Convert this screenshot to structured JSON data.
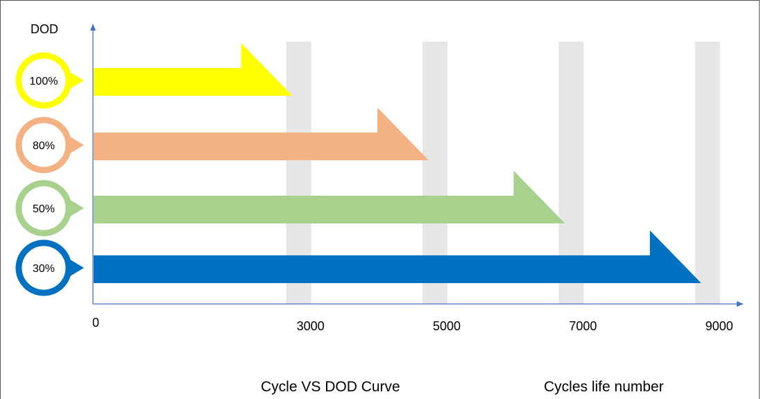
{
  "chart_data": {
    "type": "bar",
    "orientation": "horizontal",
    "ylabel": "DOD",
    "xlabel": "Cycles life number",
    "caption": "Cycle VS DOD Curve",
    "x_origin_label": "0",
    "xlim": [
      0,
      10000
    ],
    "x_ticks": [
      {
        "value": 3000,
        "label": "3000"
      },
      {
        "value": 5000,
        "label": "5000"
      },
      {
        "value": 7000,
        "label": "7000"
      },
      {
        "value": 9000,
        "label": "9000"
      }
    ],
    "grid": "vertical bands at tick values",
    "categories": [
      "100%",
      "80%",
      "50%",
      "30%"
    ],
    "values": [
      3000,
      5000,
      7000,
      9000
    ],
    "colors": [
      "#ffff00",
      "#f4b183",
      "#a9d18e",
      "#0070c0"
    ],
    "grid_color": "#e6e6e6",
    "axis_color": "#4472c4"
  }
}
